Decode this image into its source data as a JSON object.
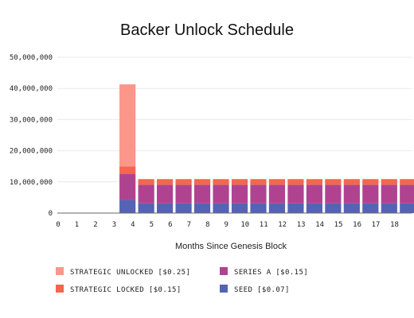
{
  "chart_data": {
    "type": "bar",
    "stacked": true,
    "title": "Backer Unlock Schedule",
    "xlabel": "Months Since Genesis Block",
    "ylabel": "",
    "ylim": [
      0,
      50000000
    ],
    "ytick_values": [
      0,
      10000000,
      20000000,
      30000000,
      40000000,
      50000000
    ],
    "ytick_labels": [
      "0",
      "10,000,000",
      "20,000,000",
      "30,000,000",
      "40,000,000",
      "50,000,000"
    ],
    "categories": [
      "0",
      "1",
      "2",
      "3",
      "4",
      "5",
      "6",
      "7",
      "8",
      "9",
      "10",
      "11",
      "12",
      "13",
      "14",
      "15",
      "16",
      "17",
      "18"
    ],
    "grid": true,
    "legend_position": "bottom",
    "series": [
      {
        "name": "SEED [$0.07]",
        "color": "#5563b5",
        "values": [
          0,
          0,
          0,
          4200000,
          3100000,
          3100000,
          3100000,
          3100000,
          3100000,
          3100000,
          3100000,
          3100000,
          3100000,
          3100000,
          3100000,
          3100000,
          3100000,
          3100000,
          3100000
        ]
      },
      {
        "name": "SERIES A [$0.15]",
        "color": "#b0438f",
        "values": [
          0,
          0,
          0,
          8300000,
          6000000,
          6000000,
          6000000,
          6000000,
          6000000,
          6000000,
          6000000,
          6000000,
          6000000,
          6000000,
          6000000,
          6000000,
          6000000,
          6000000,
          6000000
        ]
      },
      {
        "name": "STRATEGIC LOCKED [$0.15]",
        "color": "#f4664e",
        "values": [
          0,
          0,
          0,
          2500000,
          1800000,
          1800000,
          1800000,
          1800000,
          1800000,
          1800000,
          1800000,
          1800000,
          1800000,
          1800000,
          1800000,
          1800000,
          1800000,
          1800000,
          1800000
        ]
      },
      {
        "name": "STRATEGIC UNLOCKED [$0.25]",
        "color": "#fc968a",
        "values": [
          0,
          0,
          0,
          26300000,
          0,
          0,
          0,
          0,
          0,
          0,
          0,
          0,
          0,
          0,
          0,
          0,
          0,
          0,
          0
        ]
      }
    ],
    "legend_order": [
      3,
      1,
      2,
      0
    ]
  }
}
